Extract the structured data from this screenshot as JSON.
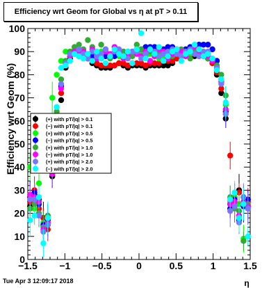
{
  "title": "Efficiency wrt Geom for Global vs  η at pT > 0.11",
  "timestamp": "Tue Apr  3 12:09:17 2018",
  "chart_data": {
    "type": "scatter",
    "xlabel": "η",
    "ylabel": "Efficiency wrt Geom (%)",
    "xlim": [
      -1.5,
      1.5
    ],
    "ylim": [
      0,
      100
    ],
    "x_ticks": [
      "−1.5",
      "−1",
      "−0.5",
      "0",
      "0.5",
      "1",
      "1.5"
    ],
    "y_ticks": [
      "0",
      "10",
      "20",
      "30",
      "40",
      "50",
      "60",
      "70",
      "80",
      "90",
      "100"
    ],
    "x_tick_values": [
      -1.5,
      -1,
      -0.5,
      0,
      0.5,
      1,
      1.5
    ],
    "y_tick_values": [
      0,
      10,
      20,
      30,
      40,
      50,
      60,
      70,
      80,
      90,
      100
    ],
    "grid": false,
    "legend_position": "left-middle",
    "series": [
      {
        "name": "(+) with pT/|q| > 0.1",
        "color": "#000000",
        "x": [
          -1.47,
          -1.41,
          -1.35,
          -1.29,
          -1.23,
          -1.17,
          -1.11,
          -1.05,
          -0.99,
          -0.93,
          -0.87,
          -0.81,
          -0.75,
          -0.69,
          -0.63,
          -0.57,
          -0.51,
          -0.45,
          -0.39,
          -0.33,
          -0.27,
          -0.21,
          -0.15,
          -0.09,
          -0.03,
          0.03,
          0.09,
          0.15,
          0.21,
          0.27,
          0.33,
          0.39,
          0.45,
          0.51,
          0.57,
          0.63,
          0.69,
          0.75,
          0.81,
          0.87,
          0.93,
          0.99,
          1.05,
          1.11,
          1.17,
          1.23,
          1.29,
          1.35,
          1.41,
          1.47
        ],
        "y": [
          23,
          28,
          26,
          18,
          15,
          36,
          56,
          69,
          83,
          87,
          89,
          88,
          88,
          87,
          85,
          84,
          83,
          83,
          83,
          84,
          85,
          84,
          83,
          84,
          84,
          84,
          83,
          84,
          84,
          84,
          84,
          84,
          85,
          87,
          88,
          88,
          88,
          88,
          88,
          88,
          87,
          85,
          80,
          72,
          61,
          24,
          27,
          30,
          24,
          23
        ]
      },
      {
        "name": "(−) with pT/|q| > 0.1",
        "color": "#ff0000",
        "x": [
          -1.47,
          -1.41,
          -1.35,
          -1.29,
          -1.23,
          -1.17,
          -1.11,
          -1.05,
          -0.99,
          -0.93,
          -0.87,
          -0.81,
          -0.75,
          -0.69,
          -0.63,
          -0.57,
          -0.51,
          -0.45,
          -0.39,
          -0.33,
          -0.27,
          -0.21,
          -0.15,
          -0.09,
          -0.03,
          0.03,
          0.09,
          0.15,
          0.21,
          0.27,
          0.33,
          0.39,
          0.45,
          0.51,
          0.57,
          0.63,
          0.69,
          0.75,
          0.81,
          0.87,
          0.93,
          0.99,
          1.05,
          1.11,
          1.17,
          1.23,
          1.29,
          1.35,
          1.41,
          1.47
        ],
        "y": [
          25,
          30,
          22,
          18,
          13,
          40,
          60,
          72,
          84,
          88,
          89,
          89,
          88,
          87,
          86,
          85,
          84,
          84,
          84,
          84,
          85,
          85,
          84,
          85,
          85,
          85,
          84,
          85,
          85,
          85,
          86,
          86,
          86,
          87,
          88,
          89,
          89,
          89,
          89,
          88,
          87,
          85,
          81,
          74,
          63,
          45,
          23,
          29,
          27,
          25
        ]
      },
      {
        "name": "(+) with pT/|q| > 0.5",
        "color": "#00ff00",
        "x": [
          -1.47,
          -1.41,
          -1.35,
          -1.29,
          -1.23,
          -1.17,
          -1.11,
          -1.05,
          -0.99,
          -0.93,
          -0.87,
          -0.81,
          -0.75,
          -0.69,
          -0.63,
          -0.57,
          -0.51,
          -0.45,
          -0.39,
          -0.33,
          -0.27,
          -0.21,
          -0.15,
          -0.09,
          -0.03,
          0.03,
          0.09,
          0.15,
          0.21,
          0.27,
          0.33,
          0.39,
          0.45,
          0.51,
          0.57,
          0.63,
          0.69,
          0.75,
          0.81,
          0.87,
          0.93,
          0.99,
          1.05,
          1.11,
          1.17,
          1.23,
          1.29,
          1.35,
          1.41,
          1.47
        ],
        "y": [
          40,
          22,
          33,
          16,
          44,
          70,
          80,
          86,
          90,
          90,
          91,
          90,
          90,
          89,
          88,
          89,
          90,
          88,
          88,
          89,
          88,
          87,
          89,
          88,
          90,
          89,
          88,
          89,
          89,
          87,
          88,
          89,
          90,
          89,
          89,
          88,
          89,
          89,
          89,
          90,
          90,
          87,
          82,
          77,
          67,
          25,
          27,
          24,
          9,
          22
        ]
      },
      {
        "name": "(−) with pT/|q| > 0.5",
        "color": "#0000ff",
        "x": [
          -1.47,
          -1.41,
          -1.35,
          -1.29,
          -1.23,
          -1.17,
          -1.11,
          -1.05,
          -0.99,
          -0.93,
          -0.87,
          -0.81,
          -0.75,
          -0.69,
          -0.63,
          -0.57,
          -0.51,
          -0.45,
          -0.39,
          -0.33,
          -0.27,
          -0.21,
          -0.15,
          -0.09,
          -0.03,
          0.03,
          0.09,
          0.15,
          0.21,
          0.27,
          0.33,
          0.39,
          0.45,
          0.51,
          0.57,
          0.63,
          0.69,
          0.75,
          0.81,
          0.87,
          0.93,
          0.99,
          1.05,
          1.11,
          1.17,
          1.23,
          1.29,
          1.35,
          1.41,
          1.47
        ],
        "y": [
          27,
          29,
          24,
          15,
          17,
          38,
          62,
          75,
          85,
          89,
          90,
          90,
          89,
          89,
          88,
          88,
          87,
          88,
          88,
          88,
          89,
          90,
          90,
          90,
          91,
          91,
          92,
          92,
          92,
          91,
          91,
          92,
          92,
          91,
          90,
          91,
          92,
          92,
          93,
          93,
          93,
          91,
          86,
          78,
          64,
          22,
          26,
          17,
          23,
          26
        ]
      },
      {
        "name": "(+) with pT/|q| > 1.0",
        "color": "#33aa33",
        "x": [
          -1.47,
          -1.41,
          -1.35,
          -1.29,
          -1.23,
          -1.17,
          -1.11,
          -1.05,
          -0.99,
          -0.93,
          -0.87,
          -0.81,
          -0.75,
          -0.69,
          -0.63,
          -0.57,
          -0.51,
          -0.45,
          -0.39,
          -0.33,
          -0.27,
          -0.21,
          -0.15,
          -0.09,
          -0.03,
          0.03,
          0.09,
          0.15,
          0.21,
          0.27,
          0.33,
          0.39,
          0.45,
          0.51,
          0.57,
          0.63,
          0.69,
          0.75,
          0.81,
          0.87,
          0.93,
          0.99,
          1.05,
          1.11,
          1.17,
          1.23,
          1.29,
          1.35,
          1.41,
          1.47
        ],
        "y": [
          22,
          24,
          20,
          14,
          19,
          40,
          64,
          78,
          86,
          90,
          92,
          93,
          91,
          95,
          92,
          89,
          93,
          91,
          87,
          92,
          89,
          90,
          90,
          88,
          93,
          91,
          89,
          90,
          88,
          90,
          89,
          87,
          88,
          90,
          91,
          89,
          87,
          90,
          91,
          88,
          87,
          86,
          84,
          80,
          71,
          27,
          22,
          21,
          8,
          24
        ]
      },
      {
        "name": "(−) with pT/|q| > 1.0",
        "color": "#ff00ff",
        "x": [
          -1.47,
          -1.41,
          -1.35,
          -1.29,
          -1.23,
          -1.17,
          -1.11,
          -1.05,
          -0.99,
          -0.93,
          -0.87,
          -0.81,
          -0.75,
          -0.69,
          -0.63,
          -0.57,
          -0.51,
          -0.45,
          -0.39,
          -0.33,
          -0.27,
          -0.21,
          -0.15,
          -0.09,
          -0.03,
          0.03,
          0.09,
          0.15,
          0.21,
          0.27,
          0.33,
          0.39,
          0.45,
          0.51,
          0.57,
          0.63,
          0.69,
          0.75,
          0.81,
          0.87,
          0.93,
          0.99,
          1.05,
          1.11,
          1.17,
          1.23,
          1.29,
          1.35,
          1.41,
          1.47
        ],
        "y": [
          28,
          27,
          25,
          13,
          16,
          37,
          58,
          74,
          84,
          88,
          90,
          89,
          90,
          88,
          91,
          87,
          88,
          90,
          89,
          92,
          90,
          87,
          88,
          85,
          89,
          88,
          90,
          86,
          88,
          91,
          90,
          87,
          89,
          91,
          90,
          88,
          90,
          92,
          90,
          89,
          88,
          86,
          83,
          77,
          65,
          24,
          25,
          19,
          25,
          23
        ]
      },
      {
        "name": "(+) with pT/|q| > 2.0",
        "color": "#7777ff",
        "x": [
          -1.47,
          -1.41,
          -1.35,
          -1.29,
          -1.23,
          -1.17,
          -1.11,
          -1.05,
          -0.99,
          -0.93,
          -0.87,
          -0.81,
          -0.75,
          -0.69,
          -0.63,
          -0.57,
          -0.51,
          -0.45,
          -0.39,
          -0.33,
          -0.27,
          -0.21,
          -0.15,
          -0.09,
          -0.03,
          0.03,
          0.09,
          0.15,
          0.21,
          0.27,
          0.33,
          0.39,
          0.45,
          0.51,
          0.57,
          0.63,
          0.69,
          0.75,
          0.81,
          0.87,
          0.93,
          0.99,
          1.05,
          1.11,
          1.17,
          1.23,
          1.29,
          1.35,
          1.41,
          1.47
        ],
        "y": [
          26,
          26,
          19,
          12,
          15,
          39,
          60,
          76,
          85,
          89,
          89,
          91,
          89,
          87,
          90,
          88,
          89,
          91,
          88,
          90,
          91,
          88,
          87,
          90,
          90,
          87,
          89,
          91,
          90,
          88,
          89,
          90,
          91,
          89,
          88,
          90,
          91,
          89,
          88,
          90,
          90,
          87,
          83,
          76,
          63,
          21,
          23,
          16,
          27,
          22
        ]
      },
      {
        "name": "(−) with pT/|q| > 2.0",
        "color": "#00ffff",
        "x": [
          -1.47,
          -1.41,
          -1.35,
          -1.29,
          -1.23,
          -1.17,
          -1.11,
          -1.05,
          -0.99,
          -0.93,
          -0.87,
          -0.81,
          -0.75,
          -0.69,
          -0.63,
          -0.57,
          -0.51,
          -0.45,
          -0.39,
          -0.33,
          -0.27,
          -0.21,
          -0.15,
          -0.09,
          -0.03,
          0.03,
          0.09,
          0.15,
          0.21,
          0.27,
          0.33,
          0.39,
          0.45,
          0.51,
          0.57,
          0.63,
          0.69,
          0.75,
          0.81,
          0.87,
          0.93,
          0.99,
          1.05,
          1.11,
          1.17,
          1.23,
          1.29,
          1.35,
          1.41,
          1.47
        ],
        "y": [
          17,
          19,
          27,
          7,
          18,
          42,
          66,
          83,
          84,
          86,
          89,
          88,
          87,
          89,
          86,
          90,
          87,
          85,
          88,
          91,
          89,
          88,
          90,
          85,
          91,
          98,
          87,
          91,
          89,
          92,
          86,
          88,
          90,
          91,
          86,
          89,
          90,
          93,
          91,
          88,
          89,
          87,
          82,
          78,
          68,
          26,
          29,
          18,
          24,
          10
        ]
      }
    ]
  }
}
